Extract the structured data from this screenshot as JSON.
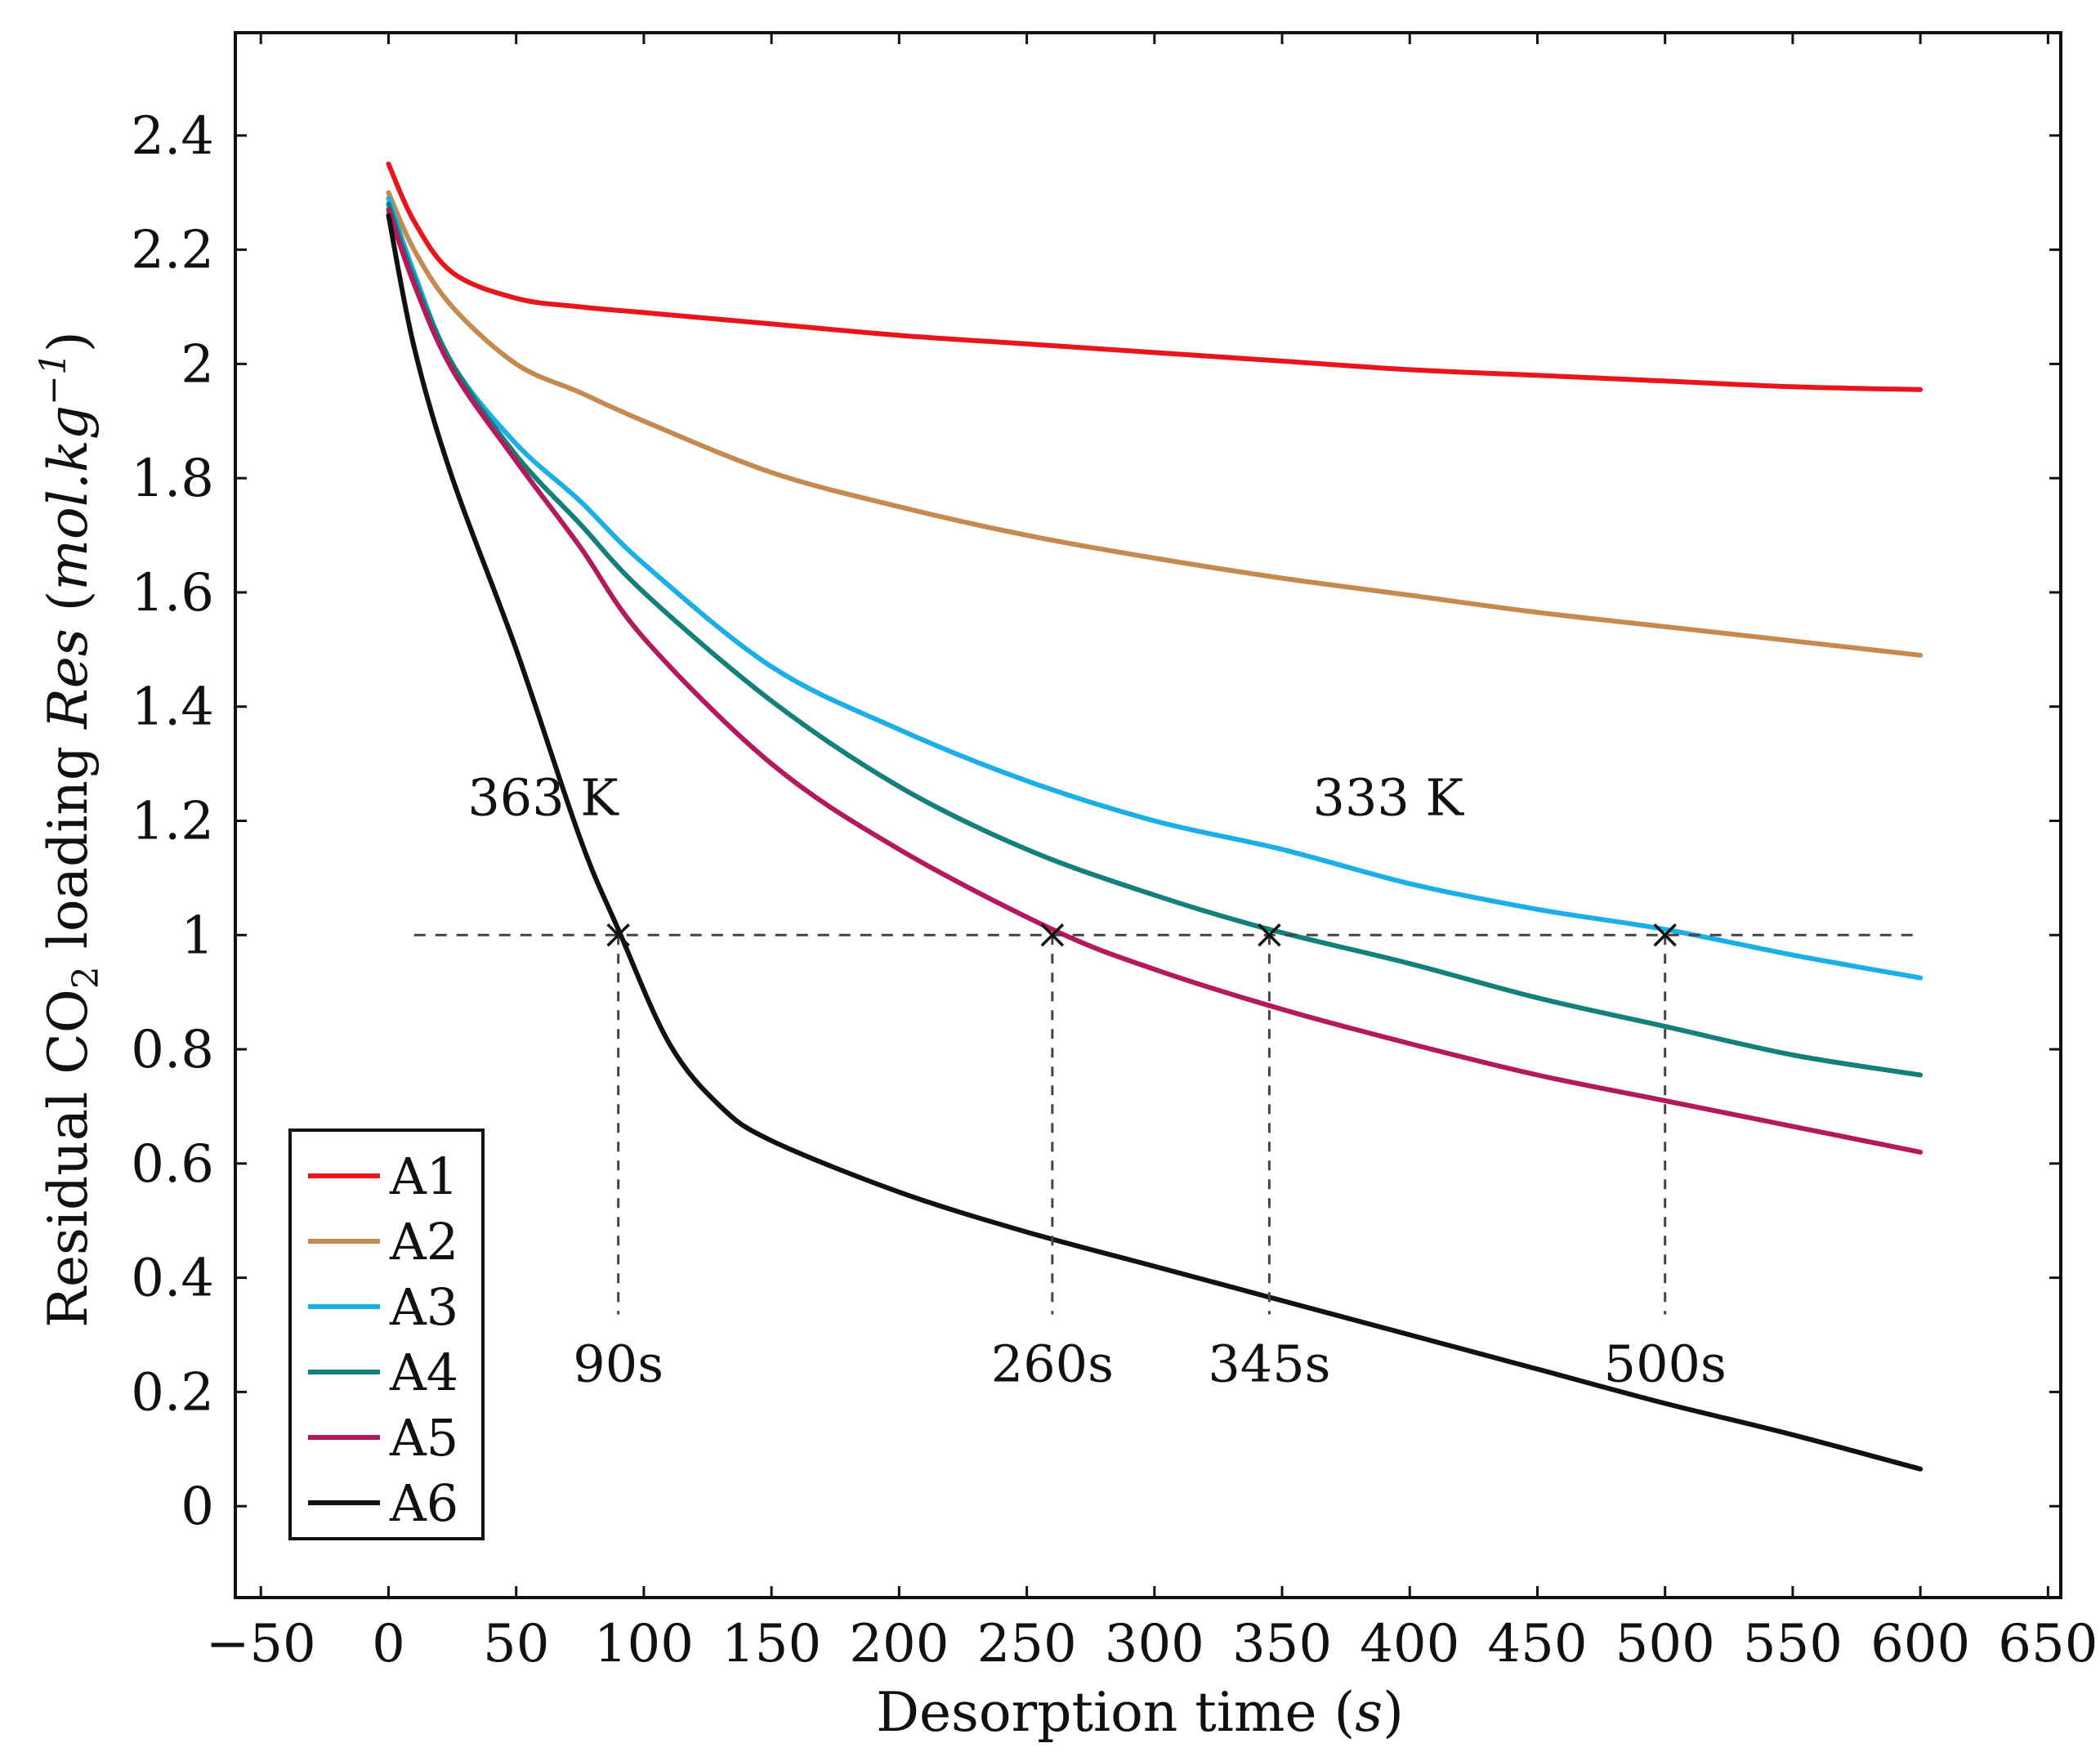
{
  "chart_data": {
    "type": "line",
    "title": "",
    "xlabel": "Desorption time (s)",
    "xlabel_parts": {
      "main": "Desorption time ",
      "open": "(",
      "unit": "s",
      "close": ")"
    },
    "ylabel": "Residual CO2 loading Res (mol.kg−1)",
    "ylabel_parts": {
      "lead": "Residual CO",
      "sub": "2",
      "mid": " loading ",
      "var": "Res",
      "open": " (",
      "unit": "mol.kg",
      "sup": "−1",
      "close": ")"
    },
    "xlim": [
      -60,
      655
    ],
    "ylim": [
      -0.16,
      2.58
    ],
    "xticks": [
      -50,
      0,
      50,
      100,
      150,
      200,
      250,
      300,
      350,
      400,
      450,
      500,
      550,
      600,
      650
    ],
    "xtick_labels": [
      "−50",
      "0",
      "50",
      "100",
      "150",
      "200",
      "250",
      "300",
      "350",
      "400",
      "450",
      "500",
      "550",
      "600",
      "650"
    ],
    "yticks": [
      0,
      0.2,
      0.4,
      0.6,
      0.8,
      1,
      1.2,
      1.4,
      1.6,
      1.8,
      2,
      2.2,
      2.4
    ],
    "ytick_labels": [
      "0",
      "0.2",
      "0.4",
      "0.6",
      "0.8",
      "1",
      "1.2",
      "1.4",
      "1.6",
      "1.8",
      "2",
      "2.2",
      "2.4"
    ],
    "grid": false,
    "legend_position": "bottom-left",
    "series": [
      {
        "name": "A1",
        "color": "#e8151b",
        "x": [
          0,
          10,
          25,
          50,
          75,
          100,
          150,
          200,
          250,
          300,
          350,
          400,
          450,
          500,
          550,
          600
        ],
        "y": [
          2.35,
          2.25,
          2.16,
          2.115,
          2.1,
          2.09,
          2.07,
          2.05,
          2.035,
          2.02,
          2.005,
          1.99,
          1.98,
          1.97,
          1.96,
          1.955
        ]
      },
      {
        "name": "A2",
        "color": "#c58a4f",
        "x": [
          0,
          10,
          25,
          50,
          75,
          100,
          150,
          200,
          250,
          300,
          350,
          400,
          450,
          500,
          550,
          600
        ],
        "y": [
          2.3,
          2.2,
          2.1,
          2.0,
          1.95,
          1.9,
          1.81,
          1.75,
          1.7,
          1.66,
          1.625,
          1.595,
          1.565,
          1.54,
          1.515,
          1.49
        ]
      },
      {
        "name": "A3",
        "color": "#1aafe6",
        "x": [
          0,
          10,
          25,
          50,
          75,
          100,
          150,
          200,
          250,
          300,
          350,
          400,
          450,
          500,
          550,
          600
        ],
        "y": [
          2.29,
          2.16,
          2.0,
          1.86,
          1.76,
          1.65,
          1.47,
          1.36,
          1.27,
          1.2,
          1.15,
          1.09,
          1.045,
          1.01,
          0.965,
          0.925
        ]
      },
      {
        "name": "A4",
        "color": "#14807a",
        "x": [
          0,
          10,
          25,
          50,
          75,
          100,
          150,
          200,
          250,
          300,
          345,
          400,
          450,
          500,
          550,
          600
        ],
        "y": [
          2.28,
          2.15,
          2.0,
          1.84,
          1.72,
          1.6,
          1.41,
          1.26,
          1.15,
          1.07,
          1.01,
          0.95,
          0.89,
          0.84,
          0.79,
          0.755
        ]
      },
      {
        "name": "A5",
        "color": "#b3195c",
        "x": [
          0,
          10,
          25,
          50,
          75,
          100,
          150,
          200,
          260,
          300,
          350,
          400,
          450,
          500,
          550,
          600
        ],
        "y": [
          2.27,
          2.14,
          1.99,
          1.83,
          1.68,
          1.52,
          1.3,
          1.15,
          1.01,
          0.94,
          0.87,
          0.81,
          0.755,
          0.71,
          0.665,
          0.62
        ]
      },
      {
        "name": "A6",
        "color": "#111111",
        "x": [
          0,
          10,
          25,
          50,
          75,
          90,
          110,
          130,
          150,
          200,
          250,
          300,
          350,
          400,
          450,
          500,
          550,
          600
        ],
        "y": [
          2.26,
          2.03,
          1.8,
          1.5,
          1.17,
          1.01,
          0.81,
          0.7,
          0.64,
          0.55,
          0.48,
          0.42,
          0.36,
          0.3,
          0.24,
          0.18,
          0.125,
          0.065
        ]
      }
    ],
    "reference_line": {
      "y": 1.0,
      "x_start": 10,
      "x_end": 600,
      "style": "dashed"
    },
    "markers": [
      {
        "x": 90,
        "y": 1.0,
        "label": "90s"
      },
      {
        "x": 260,
        "y": 1.0,
        "label": "260s"
      },
      {
        "x": 345,
        "y": 1.0,
        "label": "345s"
      },
      {
        "x": 500,
        "y": 1.0,
        "label": "500s"
      }
    ],
    "marker_label_y": 0.25,
    "annotations": [
      {
        "text": "363 K",
        "x": 31,
        "y": 1.21
      },
      {
        "text": "333 K",
        "x": 362,
        "y": 1.21
      }
    ]
  }
}
